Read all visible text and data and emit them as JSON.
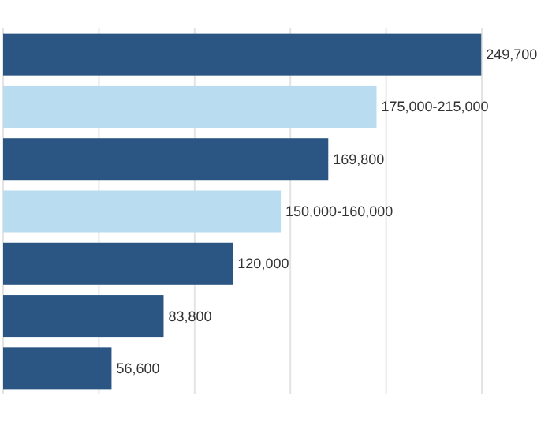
{
  "chart_data": {
    "type": "bar",
    "orientation": "horizontal",
    "categories": [
      null,
      null,
      null,
      null,
      null,
      null,
      null
    ],
    "values": [
      249700,
      195000,
      169800,
      145000,
      120000,
      83800,
      56600
    ],
    "value_labels": [
      "249,700",
      "175,000-215,000",
      "169,800",
      "150,000-160,000",
      "120,000",
      "83,800",
      "56,600"
    ],
    "colors": [
      "#2b5683",
      "#b9dcf0",
      "#2b5683",
      "#b9dcf0",
      "#2b5683",
      "#2b5683",
      "#2b5683"
    ],
    "xlim": [
      0,
      285000
    ],
    "xticks": [
      {
        "value": 0,
        "label": null
      },
      {
        "value": 50000,
        "label": null
      },
      {
        "value": 100000,
        "label": null
      },
      {
        "value": 150000,
        "label": null
      },
      {
        "value": 200000,
        "label": null
      },
      {
        "value": 250000,
        "label": null
      }
    ],
    "grid": "x"
  }
}
